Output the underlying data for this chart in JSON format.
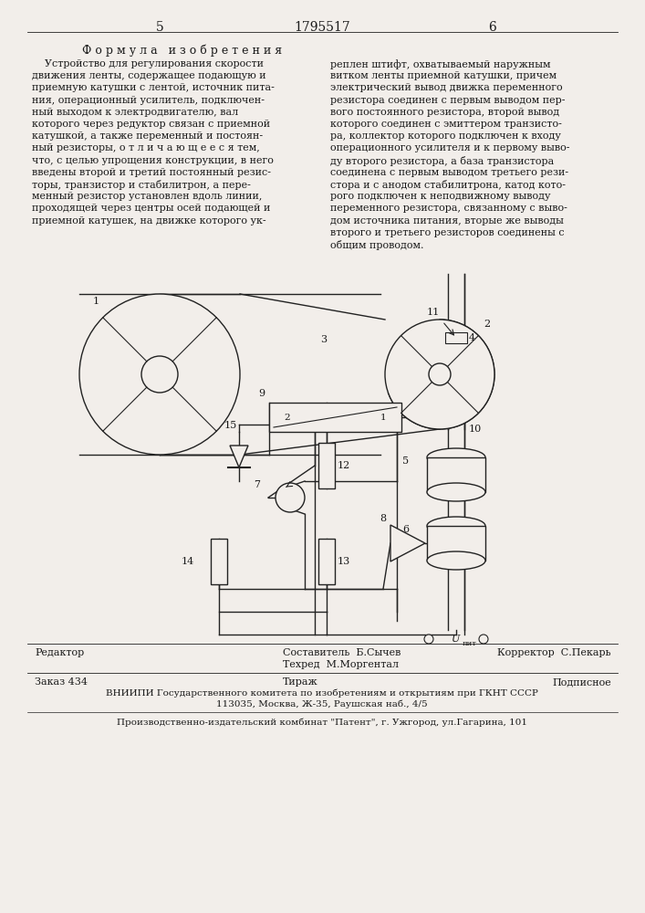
{
  "page_number_left": "5",
  "patent_number": "1795517",
  "page_number_right": "6",
  "section_title": "Ф о р м у л а   и з о б р е т е н и я",
  "left_lines": [
    "    Устройство для регулирования скорости",
    "движения ленты, содержащее подающую и",
    "приемную катушки с лентой, источник пита-",
    "ния, операционный усилитель, подключен-",
    "ный выходом к электродвигателю, вал",
    "которого через редуктор связан с приемной",
    "катушкой, а также переменный и постоян-",
    "ный резисторы, о т л и ч а ю щ е е с я тем,",
    "что, с целью упрощения конструкции, в него",
    "введены второй и третий постоянный резис-",
    "торы, транзистор и стабилитрон, а пере-",
    "менный резистор установлен вдоль линии,",
    "проходящей через центры осей подающей и",
    "приемной катушек, на движке которого ук-"
  ],
  "right_lines": [
    "реплен штифт, охватываемый наружным",
    "витком ленты приемной катушки, причем",
    "электрический вывод движка переменного",
    "резистора соединен с первым выводом пер-",
    "вого постоянного резистора, второй вывод",
    "которого соединен с эмиттером транзисто-",
    "ра, коллектор которого подключен к входу",
    "операционного усилителя и к первому выво-",
    "ду второго резистора, а база транзистора",
    "соединена с первым выводом третьего рези-",
    "стора и с анодом стабилитрона, катод кото-",
    "рого подключен к неподвижному выводу",
    "переменного резистора, связанному с выво-",
    "дом источника питания, вторые же выводы",
    "второго и третьего резисторов соединены с",
    "общим проводом."
  ],
  "footer_editor": "Редактор",
  "footer_author": "Составитель  Б.Сычев",
  "footer_techred": "Техред  М.Моргентал",
  "footer_corrector": "Корректор  С.Пекарь",
  "footer_order": "Заказ 434",
  "footer_tirazh": "Тираж",
  "footer_podpisnoe": "Подписное",
  "footer_vniip1": "ВНИИПИ Государственного комитета по изобретениям и открытиям при ГКНТ СССР",
  "footer_vniip2": "113035, Москва, Ж-35, Раушская наб., 4/5",
  "footer_patent": "Производственно-издательский комбинат \"Патент\", г. Ужгород, ул.Гагарина, 101",
  "bg_color": "#f2eeea",
  "text_color": "#1a1a1a",
  "line_color": "#222222"
}
